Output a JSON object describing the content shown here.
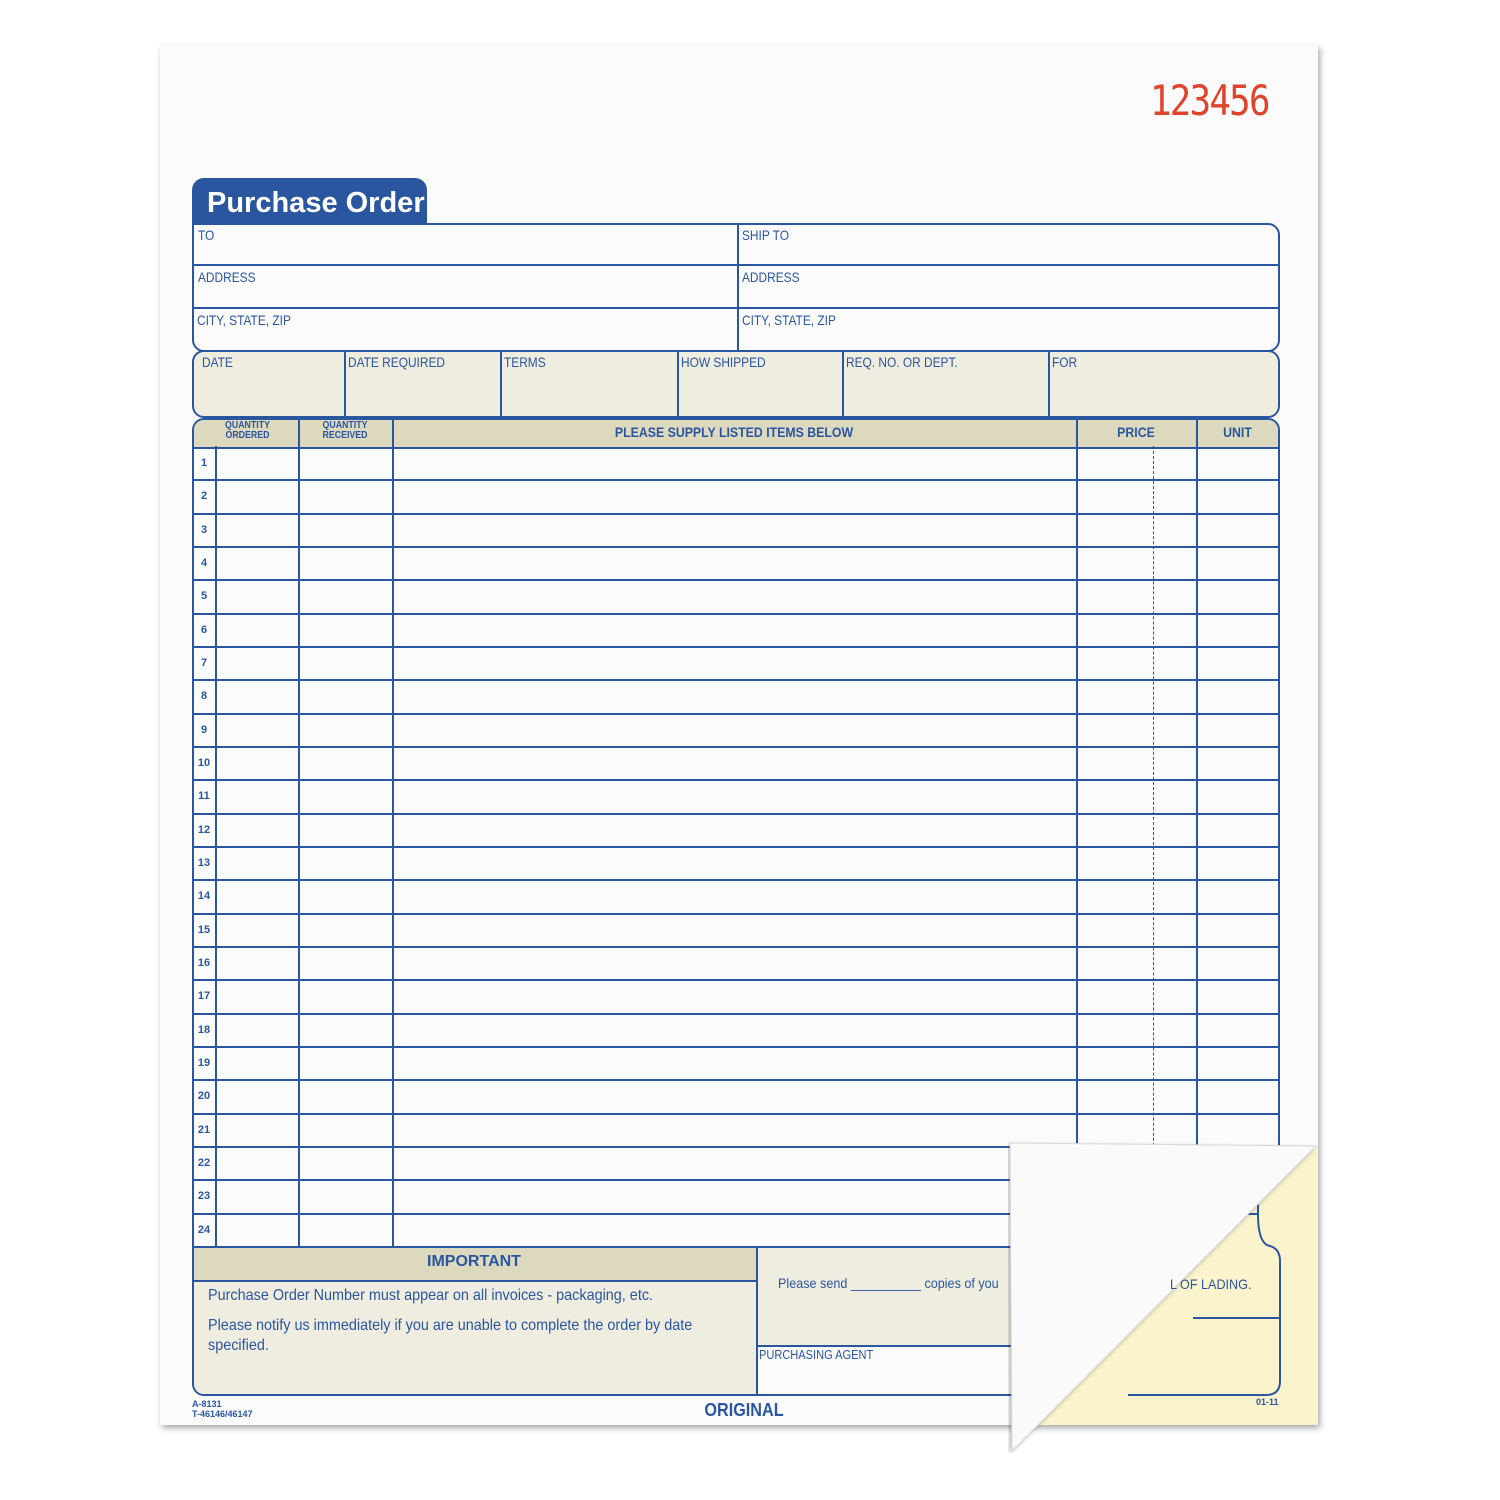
{
  "serial_number": "123456",
  "title": "Purchase Order",
  "address_block": {
    "left": [
      "TO",
      "ADDRESS",
      "CITY, STATE, ZIP"
    ],
    "right": [
      "SHIP TO",
      "ADDRESS",
      "CITY, STATE, ZIP"
    ]
  },
  "info_row": [
    "DATE",
    "DATE REQUIRED",
    "TERMS",
    "HOW SHIPPED",
    "REQ. NO. OR DEPT.",
    "FOR"
  ],
  "table": {
    "headers": {
      "qty_ordered_1": "QUANTITY",
      "qty_ordered_2": "ORDERED",
      "qty_received_1": "QUANTITY",
      "qty_received_2": "RECEIVED",
      "items": "PLEASE SUPPLY LISTED ITEMS BELOW",
      "price": "PRICE",
      "unit": "UNIT"
    },
    "row_numbers": [
      "1",
      "2",
      "3",
      "4",
      "5",
      "6",
      "7",
      "8",
      "9",
      "10",
      "11",
      "12",
      "13",
      "14",
      "15",
      "16",
      "17",
      "18",
      "19",
      "20",
      "21",
      "22",
      "23",
      "24"
    ]
  },
  "important": {
    "heading": "IMPORTANT",
    "line1": "Purchase Order Number must appear on all invoices - packaging, etc.",
    "line2": "Please notify us immediately if you are unable to complete the order by date specified."
  },
  "copies": {
    "please_send": "Please send",
    "blank": "__________",
    "copies_of": "copies of you",
    "lading": "L OF LADING."
  },
  "purchasing_agent": "PURCHASING AGENT",
  "footer": {
    "code1": "A-8131",
    "code2": "T-46146/46147",
    "copy_label": "ORIGINAL",
    "revision": "01-11"
  },
  "colors": {
    "ink": "#2a56a0",
    "serial": "#e0432c",
    "tan": "#efede0",
    "tan_header": "#ddd9bf",
    "carbon_copy": "#fbf3cc"
  }
}
